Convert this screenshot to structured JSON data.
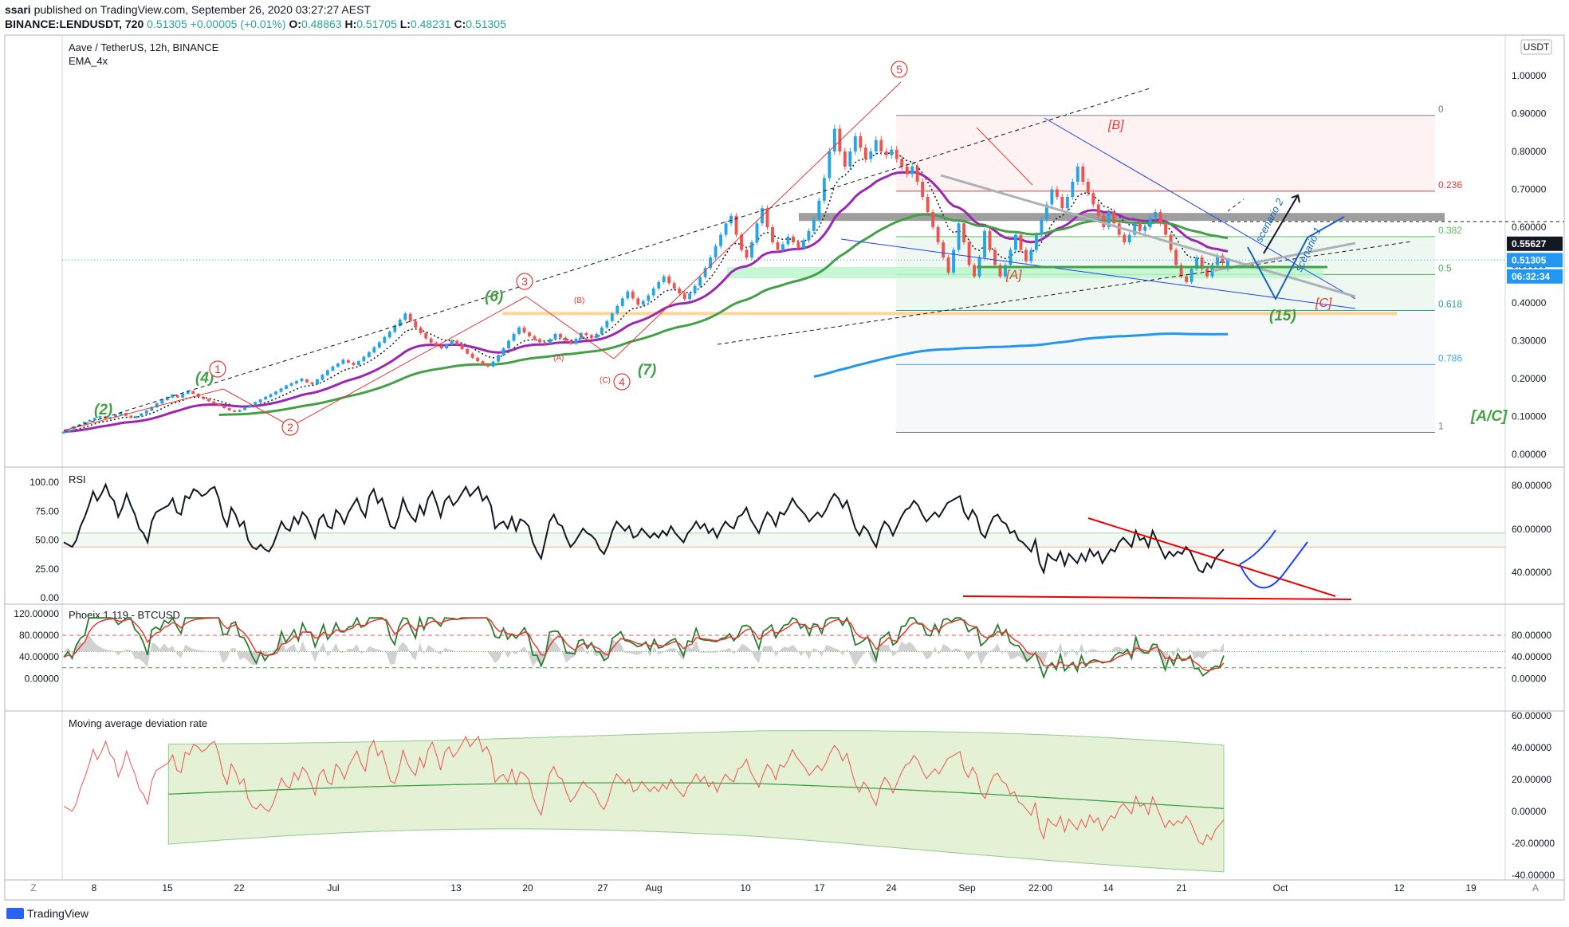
{
  "header": {
    "user": "ssari",
    "published": "published on TradingView.com, September 26, 2020 03:27:27 AEST",
    "symbol": "BINANCE:LENDUSDT, 720",
    "last": "0.51305",
    "change": "+0.00005 (+0.01%)",
    "o_label": "O:",
    "o": "0.48863",
    "h_label": "H:",
    "h": "0.51705",
    "l_label": "L:",
    "l": "0.48231",
    "c_label": "C:",
    "c": "0.51305"
  },
  "footer": {
    "brand": "TradingView"
  },
  "colors": {
    "up": "#26a5e4",
    "down": "#ef5350",
    "ema_purple": "#9c27b0",
    "ema_green": "#43a047",
    "ema_blue": "#2196f3",
    "fib_red": "#e53935"
  },
  "chart_data": [
    {
      "type": "candlestick",
      "title": "Aave / TetherUS, 12h, BINANCE",
      "subtitle": "EMA_4x",
      "y_axis_unit": "USDT",
      "ylim": [
        0,
        1.0
      ],
      "y_ticks": [
        "1.00000",
        "0.90000",
        "0.80000",
        "0.70000",
        "0.60000",
        "0.50000",
        "0.40000",
        "0.30000",
        "0.20000",
        "0.10000",
        "0.00000"
      ],
      "x_ticks": [
        "8",
        "15",
        "22",
        "Jul",
        "13",
        "20",
        "27",
        "Aug",
        "10",
        "17",
        "24",
        "Sep",
        "22:00",
        "14",
        "21",
        "Oct",
        "12",
        "19"
      ],
      "price_labels": [
        {
          "value": "0.55627",
          "y": 0.55627,
          "style": "black"
        },
        {
          "value": "0.51305",
          "y": 0.51305,
          "style": "blue"
        },
        {
          "value": "06:32:34",
          "y": 0.47,
          "style": "blue"
        }
      ],
      "fib_levels": [
        {
          "label": "0",
          "value": 0.895
        },
        {
          "label": "0.236",
          "value": 0.695
        },
        {
          "label": "0.382",
          "value": 0.575
        },
        {
          "label": "0.5",
          "value": 0.475
        },
        {
          "label": "0.618",
          "value": 0.38
        },
        {
          "label": "0.786",
          "value": 0.237
        },
        {
          "label": "1",
          "value": 0.058
        }
      ],
      "annotations": [
        "(2)",
        "(4)",
        "(6)",
        "(7)",
        "(15)",
        "[A]",
        "[B]",
        "[C]",
        "[A/C]",
        "1",
        "2",
        "3",
        "4",
        "5",
        "(B)",
        "(A)",
        "(C)",
        "scenario 2",
        "scenario 1"
      ],
      "candles": [
        [
          0.055,
          0.06
        ],
        [
          0.058,
          0.066
        ],
        [
          0.066,
          0.074
        ],
        [
          0.074,
          0.079
        ],
        [
          0.079,
          0.086
        ],
        [
          0.086,
          0.091
        ],
        [
          0.09,
          0.096
        ],
        [
          0.096,
          0.101
        ],
        [
          0.1,
          0.094
        ],
        [
          0.094,
          0.098
        ],
        [
          0.098,
          0.105
        ],
        [
          0.104,
          0.11
        ],
        [
          0.109,
          0.102
        ],
        [
          0.102,
          0.096
        ],
        [
          0.096,
          0.101
        ],
        [
          0.101,
          0.108
        ],
        [
          0.107,
          0.116
        ],
        [
          0.115,
          0.125
        ],
        [
          0.124,
          0.135
        ],
        [
          0.134,
          0.144
        ],
        [
          0.143,
          0.151
        ],
        [
          0.15,
          0.158
        ],
        [
          0.156,
          0.15
        ],
        [
          0.15,
          0.16
        ],
        [
          0.16,
          0.168
        ],
        [
          0.167,
          0.16
        ],
        [
          0.16,
          0.152
        ],
        [
          0.152,
          0.146
        ],
        [
          0.146,
          0.14
        ],
        [
          0.14,
          0.134
        ],
        [
          0.134,
          0.128
        ],
        [
          0.128,
          0.122
        ],
        [
          0.122,
          0.116
        ],
        [
          0.116,
          0.112
        ],
        [
          0.112,
          0.117
        ],
        [
          0.117,
          0.124
        ],
        [
          0.124,
          0.131
        ],
        [
          0.13,
          0.138
        ],
        [
          0.137,
          0.145
        ],
        [
          0.145,
          0.152
        ],
        [
          0.151,
          0.159
        ],
        [
          0.158,
          0.166
        ],
        [
          0.165,
          0.174
        ],
        [
          0.173,
          0.182
        ],
        [
          0.181,
          0.188
        ],
        [
          0.187,
          0.194
        ],
        [
          0.193,
          0.2
        ],
        [
          0.198,
          0.19
        ],
        [
          0.19,
          0.185
        ],
        [
          0.185,
          0.198
        ],
        [
          0.197,
          0.21
        ],
        [
          0.209,
          0.222
        ],
        [
          0.221,
          0.232
        ],
        [
          0.231,
          0.24
        ],
        [
          0.239,
          0.25
        ],
        [
          0.249,
          0.242
        ],
        [
          0.242,
          0.236
        ],
        [
          0.236,
          0.246
        ],
        [
          0.246,
          0.258
        ],
        [
          0.257,
          0.27
        ],
        [
          0.269,
          0.283
        ],
        [
          0.282,
          0.296
        ],
        [
          0.295,
          0.31
        ],
        [
          0.309,
          0.324
        ],
        [
          0.323,
          0.34
        ],
        [
          0.339,
          0.356
        ],
        [
          0.355,
          0.372
        ],
        [
          0.371,
          0.352
        ],
        [
          0.352,
          0.335
        ],
        [
          0.335,
          0.32
        ],
        [
          0.32,
          0.306
        ],
        [
          0.306,
          0.295
        ],
        [
          0.295,
          0.287
        ],
        [
          0.287,
          0.28
        ],
        [
          0.28,
          0.29
        ],
        [
          0.29,
          0.3
        ],
        [
          0.3,
          0.29
        ],
        [
          0.29,
          0.278
        ],
        [
          0.278,
          0.266
        ],
        [
          0.266,
          0.255
        ],
        [
          0.255,
          0.246
        ],
        [
          0.246,
          0.238
        ],
        [
          0.238,
          0.232
        ],
        [
          0.232,
          0.245
        ],
        [
          0.245,
          0.262
        ],
        [
          0.262,
          0.28
        ],
        [
          0.28,
          0.3
        ],
        [
          0.3,
          0.318
        ],
        [
          0.318,
          0.335
        ],
        [
          0.335,
          0.322
        ],
        [
          0.322,
          0.312
        ],
        [
          0.312,
          0.304
        ],
        [
          0.304,
          0.296
        ],
        [
          0.296,
          0.292
        ],
        [
          0.292,
          0.304
        ],
        [
          0.304,
          0.318
        ],
        [
          0.318,
          0.308
        ],
        [
          0.308,
          0.3
        ],
        [
          0.3,
          0.292
        ],
        [
          0.292,
          0.305
        ],
        [
          0.305,
          0.32
        ],
        [
          0.32,
          0.315
        ],
        [
          0.315,
          0.308
        ],
        [
          0.308,
          0.318
        ],
        [
          0.318,
          0.335
        ],
        [
          0.335,
          0.352
        ],
        [
          0.352,
          0.372
        ],
        [
          0.372,
          0.392
        ],
        [
          0.392,
          0.412
        ],
        [
          0.412,
          0.43
        ],
        [
          0.43,
          0.412
        ],
        [
          0.412,
          0.395
        ],
        [
          0.395,
          0.405
        ],
        [
          0.405,
          0.42
        ],
        [
          0.42,
          0.438
        ],
        [
          0.438,
          0.455
        ],
        [
          0.455,
          0.47
        ],
        [
          0.47,
          0.452
        ],
        [
          0.452,
          0.438
        ],
        [
          0.438,
          0.425
        ],
        [
          0.425,
          0.41
        ],
        [
          0.41,
          0.425
        ],
        [
          0.425,
          0.445
        ],
        [
          0.445,
          0.468
        ],
        [
          0.468,
          0.492
        ],
        [
          0.492,
          0.52
        ],
        [
          0.52,
          0.55
        ],
        [
          0.55,
          0.58
        ],
        [
          0.58,
          0.61
        ],
        [
          0.61,
          0.63
        ],
        [
          0.63,
          0.58
        ],
        [
          0.58,
          0.54
        ],
        [
          0.54,
          0.52
        ],
        [
          0.52,
          0.56
        ],
        [
          0.56,
          0.61
        ],
        [
          0.61,
          0.65
        ],
        [
          0.65,
          0.6
        ],
        [
          0.6,
          0.56
        ],
        [
          0.56,
          0.54
        ],
        [
          0.54,
          0.555
        ],
        [
          0.555,
          0.575
        ],
        [
          0.575,
          0.56
        ],
        [
          0.56,
          0.545
        ],
        [
          0.545,
          0.565
        ],
        [
          0.565,
          0.59
        ],
        [
          0.59,
          0.62
        ],
        [
          0.62,
          0.67
        ],
        [
          0.67,
          0.73
        ],
        [
          0.73,
          0.8
        ],
        [
          0.8,
          0.86
        ],
        [
          0.86,
          0.8
        ],
        [
          0.8,
          0.76
        ],
        [
          0.76,
          0.8
        ],
        [
          0.8,
          0.84
        ],
        [
          0.84,
          0.81
        ],
        [
          0.81,
          0.78
        ],
        [
          0.78,
          0.8
        ],
        [
          0.8,
          0.83
        ],
        [
          0.83,
          0.8
        ],
        [
          0.8,
          0.79
        ],
        [
          0.79,
          0.805
        ],
        [
          0.805,
          0.78
        ],
        [
          0.78,
          0.76
        ],
        [
          0.76,
          0.74
        ],
        [
          0.74,
          0.76
        ],
        [
          0.76,
          0.72
        ],
        [
          0.72,
          0.68
        ],
        [
          0.68,
          0.64
        ],
        [
          0.64,
          0.6
        ],
        [
          0.6,
          0.56
        ],
        [
          0.56,
          0.52
        ],
        [
          0.52,
          0.48
        ],
        [
          0.48,
          0.54
        ],
        [
          0.54,
          0.61
        ],
        [
          0.61,
          0.56
        ],
        [
          0.56,
          0.5
        ],
        [
          0.5,
          0.47
        ],
        [
          0.47,
          0.52
        ],
        [
          0.52,
          0.59
        ],
        [
          0.59,
          0.54
        ],
        [
          0.54,
          0.5
        ],
        [
          0.5,
          0.47
        ],
        [
          0.47,
          0.5
        ],
        [
          0.5,
          0.54
        ],
        [
          0.54,
          0.58
        ],
        [
          0.58,
          0.54
        ],
        [
          0.54,
          0.51
        ],
        [
          0.51,
          0.54
        ],
        [
          0.54,
          0.58
        ],
        [
          0.58,
          0.62
        ],
        [
          0.62,
          0.66
        ],
        [
          0.66,
          0.7
        ],
        [
          0.7,
          0.68
        ],
        [
          0.68,
          0.65
        ],
        [
          0.65,
          0.68
        ],
        [
          0.68,
          0.72
        ],
        [
          0.72,
          0.76
        ],
        [
          0.76,
          0.72
        ],
        [
          0.72,
          0.69
        ],
        [
          0.69,
          0.66
        ],
        [
          0.66,
          0.63
        ],
        [
          0.63,
          0.6
        ],
        [
          0.6,
          0.64
        ],
        [
          0.64,
          0.61
        ],
        [
          0.61,
          0.58
        ],
        [
          0.58,
          0.56
        ],
        [
          0.56,
          0.58
        ],
        [
          0.58,
          0.61
        ],
        [
          0.61,
          0.59
        ],
        [
          0.59,
          0.6
        ],
        [
          0.6,
          0.625
        ],
        [
          0.625,
          0.64
        ],
        [
          0.64,
          0.61
        ],
        [
          0.61,
          0.58
        ],
        [
          0.58,
          0.54
        ],
        [
          0.54,
          0.5
        ],
        [
          0.5,
          0.47
        ],
        [
          0.47,
          0.455
        ],
        [
          0.455,
          0.49
        ],
        [
          0.49,
          0.52
        ],
        [
          0.52,
          0.49
        ],
        [
          0.49,
          0.47
        ],
        [
          0.47,
          0.5
        ],
        [
          0.5,
          0.525
        ],
        [
          0.525,
          0.505
        ],
        [
          0.489,
          0.513
        ]
      ]
    },
    {
      "type": "line",
      "title": "RSI",
      "ylim": [
        0,
        100
      ],
      "y_ticks": [
        "100.00",
        "75.00",
        "50.00",
        "25.00",
        "0.00"
      ],
      "right_ticks": [
        "80.00000",
        "60.00000",
        "40.00000"
      ],
      "values": [
        48,
        46,
        44,
        50,
        62,
        70,
        80,
        92,
        84,
        90,
        98,
        88,
        84,
        70,
        78,
        90,
        80,
        72,
        60,
        56,
        48,
        66,
        74,
        76,
        78,
        80,
        86,
        74,
        72,
        88,
        86,
        94,
        92,
        88,
        90,
        94,
        96,
        86,
        70,
        62,
        78,
        72,
        62,
        66,
        50,
        44,
        42,
        46,
        42,
        40,
        46,
        56,
        66,
        60,
        58,
        70,
        64,
        74,
        70,
        62,
        52,
        68,
        72,
        62,
        60,
        76,
        72,
        64,
        74,
        80,
        86,
        76,
        70,
        88,
        94,
        82,
        86,
        74,
        62,
        60,
        70,
        86,
        76,
        70,
        66,
        80,
        72,
        86,
        92,
        82,
        70,
        84,
        88,
        80,
        84,
        90,
        96,
        88,
        92,
        96,
        84,
        88,
        80,
        60,
        64,
        66,
        60,
        70,
        58,
        68,
        66,
        62,
        48,
        40,
        34,
        50,
        66,
        72,
        64,
        62,
        52,
        44,
        48,
        54,
        60,
        56,
        54,
        50,
        42,
        38,
        46,
        58,
        66,
        62,
        58,
        62,
        52,
        54,
        60,
        56,
        52,
        56,
        52,
        58,
        54,
        62,
        56,
        52,
        48,
        56,
        60,
        66,
        60,
        64,
        56,
        60,
        52,
        60,
        66,
        62,
        60,
        70,
        72,
        78,
        68,
        62,
        56,
        66,
        74,
        70,
        62,
        74,
        72,
        78,
        86,
        80,
        76,
        72,
        66,
        70,
        74,
        70,
        76,
        84,
        90,
        86,
        78,
        84,
        72,
        60,
        54,
        62,
        58,
        50,
        44,
        58,
        66,
        62,
        54,
        62,
        70,
        76,
        78,
        84,
        80,
        72,
        66,
        70,
        74,
        70,
        76,
        82,
        84,
        86,
        88,
        74,
        68,
        76,
        70,
        56,
        52,
        62,
        70,
        72,
        66,
        64,
        56,
        58,
        50,
        48,
        44,
        40,
        50,
        30,
        22,
        38,
        34,
        32,
        40,
        28,
        38,
        34,
        30,
        38,
        32,
        42,
        36,
        40,
        30,
        36,
        42,
        40,
        48,
        52,
        48,
        44,
        58,
        50,
        52,
        44,
        58,
        50,
        42,
        34,
        40,
        36,
        40,
        38,
        44,
        40,
        32,
        24,
        22,
        30,
        26,
        34,
        38,
        42
      ],
      "guides": [
        {
          "label": "upper_band",
          "value": 56
        },
        {
          "label": "lower_band",
          "value": 44
        }
      ]
    },
    {
      "type": "line",
      "title": "Phoeix 1.119 - BTCUSD",
      "ylim": [
        -30,
        140
      ],
      "y_ticks": [
        "120.00000",
        "80.00000",
        "40.00000",
        "0.00000"
      ],
      "right_ticks": [
        "80.00000",
        "40.00000",
        "0.00000"
      ],
      "guides": [
        {
          "label": "overbought",
          "value": 80
        },
        {
          "label": "middle",
          "value": 50
        },
        {
          "label": "oversold",
          "value": 20
        }
      ]
    },
    {
      "type": "area",
      "title": "Moving average deviation rate",
      "ylim": [
        -40,
        60
      ],
      "y_ticks": [
        "60.00000",
        "40.00000",
        "20.00000",
        "0.00000",
        "-20.00000",
        "-40.00000"
      ]
    }
  ]
}
